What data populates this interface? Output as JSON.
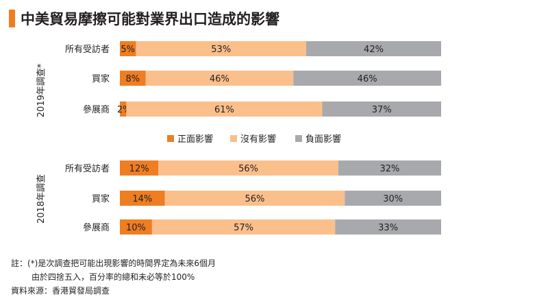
{
  "title": "中美貿易摩擦可能對業界出口造成的影響",
  "colors": {
    "positive": "#ef7d22",
    "none": "#fbbf8c",
    "negative": "#a7a9ac",
    "accent": "#ef7d22"
  },
  "legend": [
    "正面影響",
    "沒有影響",
    "負面影響"
  ],
  "chart_data": {
    "type": "bar",
    "stacked": true,
    "orientation": "horizontal",
    "unit": "%",
    "groups": [
      {
        "name": "2019年調查*",
        "categories": [
          "所有受訪者",
          "買家",
          "參展商"
        ],
        "series": [
          {
            "name": "正面影響",
            "values": [
              5,
              8,
              2
            ]
          },
          {
            "name": "沒有影響",
            "values": [
              53,
              46,
              61
            ]
          },
          {
            "name": "負面影響",
            "values": [
              42,
              46,
              37
            ]
          }
        ]
      },
      {
        "name": "2018年調查",
        "categories": [
          "所有受訪者",
          "買家",
          "參展商"
        ],
        "series": [
          {
            "name": "正面影響",
            "values": [
              12,
              14,
              10
            ]
          },
          {
            "name": "沒有影響",
            "values": [
              56,
              56,
              57
            ]
          },
          {
            "name": "負面影響",
            "values": [
              32,
              30,
              33
            ]
          }
        ]
      }
    ]
  },
  "notes": {
    "line1": "註：(*)是次調查把可能出現影響的時間界定為未來6個月",
    "line2": "由於四捨五入，百分率的總和未必等於100%",
    "source": "資料來源：香港貿發局調查"
  }
}
